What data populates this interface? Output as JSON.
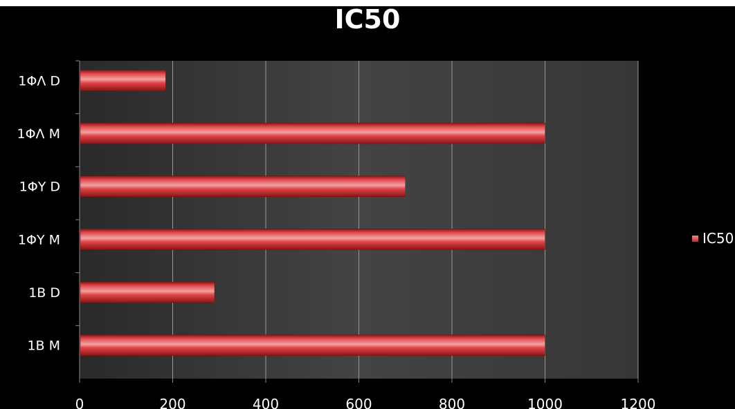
{
  "chart_data": {
    "type": "bar",
    "orientation": "horizontal",
    "title": "IC50",
    "categories": [
      "1ΦΛ D",
      "1ΦΛ M",
      "1ΦΥ D",
      "1ΦΥ M",
      "1B D",
      "1B M"
    ],
    "series": [
      {
        "name": "IC50",
        "values": [
          185,
          1000,
          700,
          1000,
          290,
          1000
        ],
        "color": "#d8343a"
      }
    ],
    "xlim": [
      0,
      1200
    ],
    "xticks": [
      "0",
      "200",
      "400",
      "600",
      "800",
      "1000",
      "1200"
    ],
    "xlabel": "",
    "ylabel": "",
    "grid": true,
    "legend_position": "right",
    "plot_background": "#3a3a3a",
    "page_background": "#000000"
  }
}
